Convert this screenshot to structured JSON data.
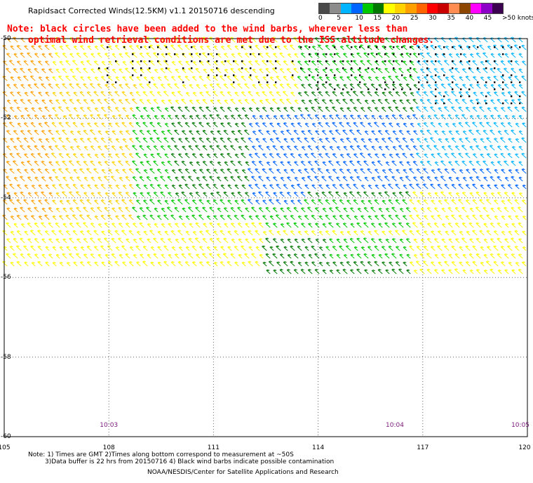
{
  "title": "Rapidsact Corrected Winds(12.5KM) v1.1 20150716 descending",
  "legend": {
    "labels": [
      "0",
      "5",
      "10",
      "15",
      "20",
      "25",
      "30",
      "35",
      "40",
      "45",
      ">50 knots"
    ],
    "colors": [
      "#4a4a4a",
      "#8c8c8c",
      "#00b4ff",
      "#0064ff",
      "#00c800",
      "#007800",
      "#ffff00",
      "#ffd200",
      "#ffa000",
      "#ff6400",
      "#ff0000",
      "#c80000",
      "#ff8c50",
      "#8c4600",
      "#ff00ff",
      "#8c00c8",
      "#3c0050"
    ]
  },
  "note": {
    "line1": "Note: black circles have been added to the wind barbs, wherever less than",
    "line2": "optimal wind retrieval conditions are met due to the ISS altitude changes."
  },
  "axes": {
    "lat_labels": [
      "-50",
      "-52",
      "-54",
      "-56",
      "-58",
      "-60"
    ],
    "lon_labels": [
      "105",
      "108",
      "111",
      "114",
      "117",
      "120"
    ],
    "lat_range": [
      -60,
      -50
    ],
    "lon_range": [
      105,
      120
    ]
  },
  "times": [
    {
      "label": "10:03",
      "lon": 108
    },
    {
      "label": "10:04",
      "lon": 116.2
    },
    {
      "label": "10:05",
      "lon": 119.8
    }
  ],
  "footer": {
    "line1": "Note: 1) Times are GMT 2)Times along bottom correspond to measurement at ~50S",
    "line2": "3)Data buffer is 22 hrs from 20150716 4) Black wind barbs indicate possible contamination",
    "line3": "NOAA/NESDIS/Center for Satellite Applications and Research"
  },
  "wind_colors": {
    "orange": "#ffa000",
    "lightorange": "#ffd200",
    "yellow": "#ffff00",
    "green": "#00c800",
    "darkgreen": "#007800",
    "blue": "#0064ff",
    "navy": "#0000c8",
    "cyan": "#00b4ff",
    "black": "#000000"
  }
}
